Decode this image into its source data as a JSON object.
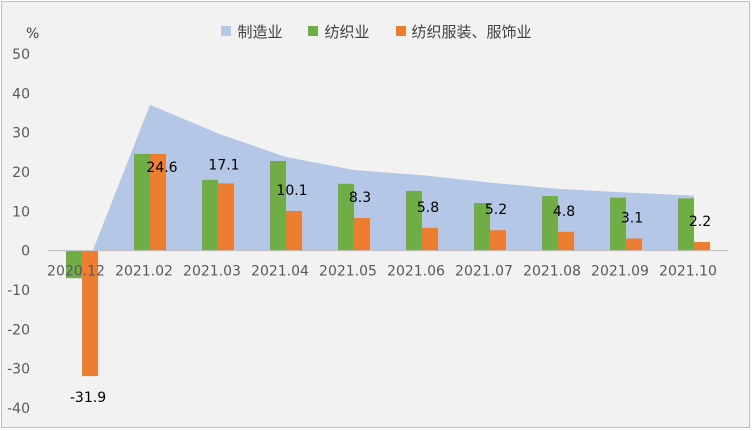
{
  "chart_data": {
    "type": "bar",
    "unit_label": "%",
    "categories": [
      "2020.12",
      "2021.02",
      "2021.03",
      "2021.04",
      "2021.05",
      "2021.06",
      "2021.07",
      "2021.08",
      "2021.09",
      "2021.10"
    ],
    "ylim": [
      -40,
      50
    ],
    "yticks": [
      50,
      40,
      30,
      20,
      10,
      0,
      -10,
      -20,
      -30,
      -40
    ],
    "grid": false,
    "legend_position": "top",
    "series": [
      {
        "name": "制造业",
        "kind": "area",
        "color": "#b4c7e7",
        "values": [
          -7,
          37.1,
          29.8,
          23.8,
          20.5,
          19.2,
          17.3,
          15.7,
          14.8,
          14.0
        ]
      },
      {
        "name": "纺织业",
        "kind": "bar",
        "color": "#70ad47",
        "values": [
          -7,
          24.6,
          18.0,
          22.8,
          17.0,
          15.2,
          12.1,
          13.9,
          13.5,
          13.3
        ]
      },
      {
        "name": "纺织服装、服饰业",
        "kind": "bar",
        "color": "#ed7d31",
        "values": [
          -31.9,
          24.6,
          17.1,
          10.1,
          8.3,
          5.8,
          5.2,
          4.8,
          3.1,
          2.2
        ],
        "data_labels": [
          "-31.9",
          "24.6",
          "17.1",
          "10.1",
          "8.3",
          "5.8",
          "5.2",
          "4.8",
          "3.1",
          "2.2"
        ]
      }
    ]
  }
}
